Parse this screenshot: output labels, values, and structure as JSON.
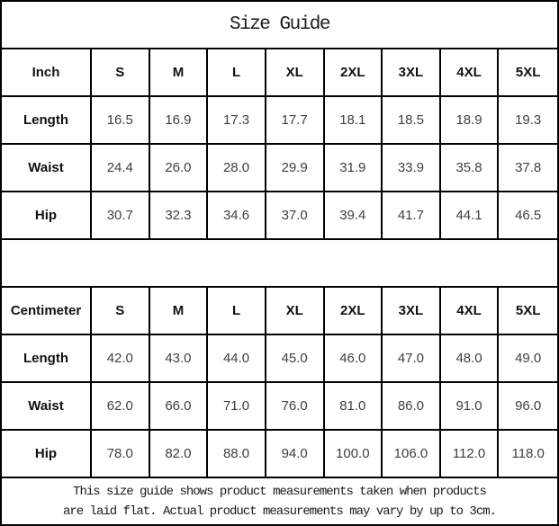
{
  "title": "Size Guide",
  "sizes": [
    "S",
    "M",
    "L",
    "XL",
    "2XL",
    "3XL",
    "4XL",
    "5XL"
  ],
  "inch_table": {
    "unit_label": "Inch",
    "rows": [
      {
        "label": "Length",
        "values": [
          "16.5",
          "16.9",
          "17.3",
          "17.7",
          "18.1",
          "18.5",
          "18.9",
          "19.3"
        ]
      },
      {
        "label": "Waist",
        "values": [
          "24.4",
          "26.0",
          "28.0",
          "29.9",
          "31.9",
          "33.9",
          "35.8",
          "37.8"
        ]
      },
      {
        "label": "Hip",
        "values": [
          "30.7",
          "32.3",
          "34.6",
          "37.0",
          "39.4",
          "41.7",
          "44.1",
          "46.5"
        ]
      }
    ]
  },
  "cm_table": {
    "unit_label": "Centimeter",
    "rows": [
      {
        "label": "Length",
        "values": [
          "42.0",
          "43.0",
          "44.0",
          "45.0",
          "46.0",
          "47.0",
          "48.0",
          "49.0"
        ]
      },
      {
        "label": "Waist",
        "values": [
          "62.0",
          "66.0",
          "71.0",
          "76.0",
          "81.0",
          "86.0",
          "91.0",
          "96.0"
        ]
      },
      {
        "label": "Hip",
        "values": [
          "78.0",
          "82.0",
          "88.0",
          "94.0",
          "100.0",
          "106.0",
          "112.0",
          "118.0"
        ]
      }
    ]
  },
  "footnote": {
    "line1": "This size guide shows product measurements taken when products",
    "line2": "are laid flat. Actual product measurements may vary by up to 3cm."
  },
  "colors": {
    "border": "#000000",
    "header_text": "#111111",
    "value_text": "#404040",
    "background": "#ffffff"
  }
}
